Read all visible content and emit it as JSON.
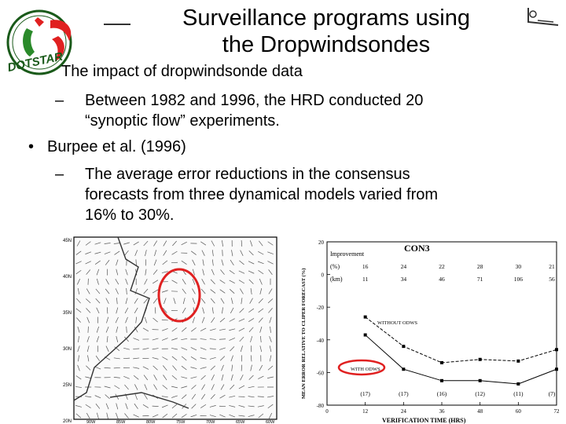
{
  "slide": {
    "title_lines": [
      "Surveillance programs using",
      "the  Dropwindsondes"
    ],
    "logo_text": "DOTSTAR",
    "bullets": [
      {
        "marker": "",
        "text": "The impact of dropwindsonde data"
      },
      {
        "marker": "–",
        "lines": [
          "Between 1982 and 1996, the HRD conducted 20",
          "“synoptic flow” experiments."
        ]
      },
      {
        "marker": "•",
        "text": "Burpee et al. (1996)"
      },
      {
        "marker": "–",
        "lines": [
          "The average error reductions in the consensus",
          "forecasts from three dynamical models varied from",
          "16% to 30%."
        ]
      }
    ]
  },
  "map": {
    "lat_labels": [
      "45N",
      "40N",
      "35N",
      "30N",
      "25N",
      "20N"
    ],
    "lon_labels": [
      "90W",
      "85W",
      "80W",
      "75W",
      "70W",
      "65W",
      "60W"
    ],
    "highlight_color": "#e02020"
  },
  "chart_data": {
    "type": "line",
    "title": "CON3",
    "xlabel": "VERIFICATION TIME (HRS)",
    "ylabel": "MEAN ERROR RELATIVE TO CLIPER FORECAST (%)",
    "x": [
      12,
      24,
      36,
      48,
      60,
      72
    ],
    "xlim": [
      0,
      72
    ],
    "ylim": [
      -80,
      20
    ],
    "y_ticks": [
      20,
      0,
      -20,
      -40,
      -60,
      -80
    ],
    "x_ticks": [
      0,
      12,
      24,
      36,
      48,
      60,
      72
    ],
    "improvement_label": "Improvement",
    "improvement_unit": "(%)",
    "improvement_values": [
      "16",
      "24",
      "22",
      "28",
      "30",
      "21"
    ],
    "km_unit": "(km)",
    "km_values": [
      "11",
      "34",
      "46",
      "71",
      "106",
      "56"
    ],
    "sample_counts": [
      "(17)",
      "(17)",
      "(16)",
      "(12)",
      "(11)",
      "(7)"
    ],
    "series": [
      {
        "name": "WITHOUT ODWS",
        "values": [
          -26,
          -44,
          -54,
          -52,
          -53,
          -46
        ]
      },
      {
        "name": "WITH ODWS",
        "values": [
          -37,
          -58,
          -65,
          -65,
          -67,
          -58
        ]
      }
    ],
    "highlight_color": "#e02020"
  }
}
